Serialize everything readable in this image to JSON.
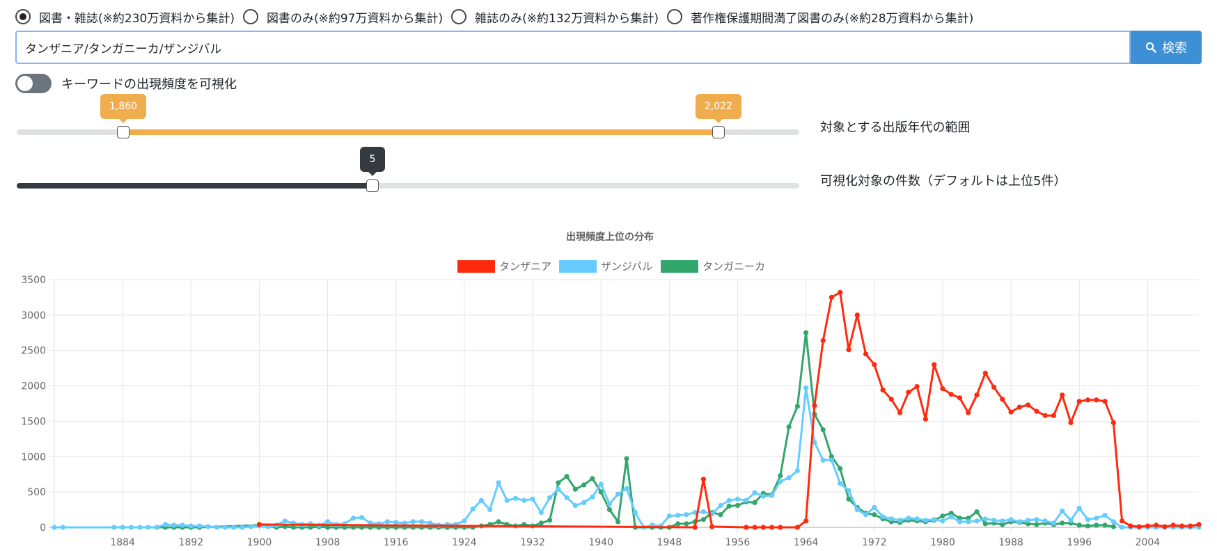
{
  "search_scope": {
    "options": [
      {
        "label": "図書・雑誌(※約230万資料から集計)",
        "selected": true
      },
      {
        "label": "図書のみ(※約97万資料から集計)",
        "selected": false
      },
      {
        "label": "雑誌のみ(※約132万資料から集計)",
        "selected": false
      },
      {
        "label": "著作権保護期間満了図書のみ(※約28万資料から集計)",
        "selected": false
      }
    ]
  },
  "search": {
    "query": "タンザニア/タンガニーカ/ザンジバル",
    "button_label": "検索",
    "button_icon": "search-icon"
  },
  "visualize_toggle": {
    "label": "キーワードの出現頻度を可視化",
    "on": false
  },
  "year_range": {
    "min_label": "1,860",
    "max_label": "2,022",
    "min": 1860,
    "max": 2022,
    "domain": [
      1831,
      2044
    ],
    "label": "対象とする出版年代の範囲"
  },
  "count_slider": {
    "value_label": "5",
    "value": 5,
    "domain": [
      0,
      11
    ],
    "label": "可視化対象の件数（デフォルトは上位5件）"
  },
  "colors": {
    "accent_orange": "#f0ad4e",
    "dark": "#343a40",
    "primary": "#3d8fd6"
  },
  "chart_data": {
    "type": "line",
    "title": "出現頻度上位の分布",
    "legend_position": "top",
    "grid": true,
    "xlim": [
      1876,
      2010
    ],
    "ylim": [
      0,
      3500
    ],
    "x_ticks": [
      1884,
      1892,
      1900,
      1908,
      1916,
      1924,
      1932,
      1940,
      1948,
      1956,
      1964,
      1972,
      1980,
      1988,
      1996,
      2004
    ],
    "y_ticks": [
      0,
      500,
      1000,
      1500,
      2000,
      2500,
      3000,
      3500
    ],
    "series": [
      {
        "name": "タンザニア",
        "color": "#ff2a0e",
        "points": [
          [
            1900,
            40
          ],
          [
            1951,
            0
          ],
          [
            1952,
            680
          ],
          [
            1953,
            10
          ],
          [
            1957,
            0
          ],
          [
            1958,
            0
          ],
          [
            1959,
            0
          ],
          [
            1960,
            0
          ],
          [
            1961,
            0
          ],
          [
            1963,
            0
          ],
          [
            1964,
            90
          ],
          [
            1965,
            1720
          ],
          [
            1966,
            2640
          ],
          [
            1967,
            3250
          ],
          [
            1968,
            3320
          ],
          [
            1969,
            2510
          ],
          [
            1970,
            3000
          ],
          [
            1971,
            2450
          ],
          [
            1972,
            2300
          ],
          [
            1973,
            1940
          ],
          [
            1974,
            1810
          ],
          [
            1975,
            1620
          ],
          [
            1976,
            1910
          ],
          [
            1977,
            1990
          ],
          [
            1978,
            1530
          ],
          [
            1979,
            2300
          ],
          [
            1980,
            1960
          ],
          [
            1981,
            1880
          ],
          [
            1982,
            1830
          ],
          [
            1983,
            1620
          ],
          [
            1984,
            1870
          ],
          [
            1985,
            2180
          ],
          [
            1986,
            1980
          ],
          [
            1987,
            1810
          ],
          [
            1988,
            1630
          ],
          [
            1989,
            1700
          ],
          [
            1990,
            1730
          ],
          [
            1991,
            1640
          ],
          [
            1992,
            1580
          ],
          [
            1993,
            1580
          ],
          [
            1994,
            1870
          ],
          [
            1995,
            1480
          ],
          [
            1996,
            1780
          ],
          [
            1997,
            1800
          ],
          [
            1998,
            1800
          ],
          [
            1999,
            1780
          ],
          [
            2000,
            1480
          ],
          [
            2001,
            90
          ],
          [
            2002,
            20
          ],
          [
            2003,
            10
          ],
          [
            2004,
            20
          ],
          [
            2005,
            30
          ],
          [
            2006,
            10
          ],
          [
            2007,
            30
          ],
          [
            2008,
            20
          ],
          [
            2009,
            20
          ],
          [
            2010,
            40
          ]
        ]
      },
      {
        "name": "ザンジバル",
        "color": "#66ccff",
        "points": [
          [
            1876,
            0
          ],
          [
            1877,
            0
          ],
          [
            1883,
            0
          ],
          [
            1884,
            0
          ],
          [
            1885,
            0
          ],
          [
            1886,
            0
          ],
          [
            1887,
            0
          ],
          [
            1888,
            0
          ],
          [
            1889,
            40
          ],
          [
            1890,
            30
          ],
          [
            1891,
            30
          ],
          [
            1892,
            20
          ],
          [
            1893,
            20
          ],
          [
            1894,
            10
          ],
          [
            1895,
            0
          ],
          [
            1896,
            0
          ],
          [
            1897,
            0
          ],
          [
            1898,
            0
          ],
          [
            1899,
            10
          ],
          [
            1900,
            20
          ],
          [
            1901,
            10
          ],
          [
            1902,
            30
          ],
          [
            1903,
            90
          ],
          [
            1904,
            60
          ],
          [
            1905,
            40
          ],
          [
            1906,
            50
          ],
          [
            1907,
            30
          ],
          [
            1908,
            80
          ],
          [
            1909,
            40
          ],
          [
            1910,
            50
          ],
          [
            1911,
            130
          ],
          [
            1912,
            140
          ],
          [
            1913,
            60
          ],
          [
            1914,
            50
          ],
          [
            1915,
            80
          ],
          [
            1916,
            70
          ],
          [
            1917,
            60
          ],
          [
            1918,
            80
          ],
          [
            1919,
            80
          ],
          [
            1920,
            60
          ],
          [
            1921,
            30
          ],
          [
            1922,
            40
          ],
          [
            1923,
            40
          ],
          [
            1924,
            90
          ],
          [
            1925,
            260
          ],
          [
            1926,
            380
          ],
          [
            1927,
            250
          ],
          [
            1928,
            630
          ],
          [
            1929,
            380
          ],
          [
            1930,
            410
          ],
          [
            1931,
            380
          ],
          [
            1932,
            400
          ],
          [
            1933,
            210
          ],
          [
            1934,
            420
          ],
          [
            1935,
            540
          ],
          [
            1936,
            420
          ],
          [
            1937,
            310
          ],
          [
            1938,
            350
          ],
          [
            1939,
            430
          ],
          [
            1940,
            610
          ],
          [
            1941,
            330
          ],
          [
            1942,
            470
          ],
          [
            1943,
            550
          ],
          [
            1944,
            210
          ],
          [
            1945,
            0
          ],
          [
            1946,
            30
          ],
          [
            1947,
            20
          ],
          [
            1948,
            160
          ],
          [
            1949,
            170
          ],
          [
            1950,
            180
          ],
          [
            1951,
            210
          ],
          [
            1952,
            220
          ],
          [
            1953,
            190
          ],
          [
            1954,
            310
          ],
          [
            1955,
            380
          ],
          [
            1956,
            400
          ],
          [
            1957,
            380
          ],
          [
            1958,
            490
          ],
          [
            1959,
            440
          ],
          [
            1960,
            450
          ],
          [
            1961,
            650
          ],
          [
            1962,
            700
          ],
          [
            1963,
            800
          ],
          [
            1964,
            1970
          ],
          [
            1965,
            1200
          ],
          [
            1966,
            950
          ],
          [
            1967,
            950
          ],
          [
            1968,
            620
          ],
          [
            1969,
            520
          ],
          [
            1970,
            250
          ],
          [
            1971,
            180
          ],
          [
            1972,
            280
          ],
          [
            1973,
            150
          ],
          [
            1974,
            120
          ],
          [
            1975,
            100
          ],
          [
            1976,
            130
          ],
          [
            1977,
            120
          ],
          [
            1978,
            100
          ],
          [
            1979,
            110
          ],
          [
            1980,
            90
          ],
          [
            1981,
            150
          ],
          [
            1982,
            80
          ],
          [
            1983,
            80
          ],
          [
            1984,
            90
          ],
          [
            1985,
            120
          ],
          [
            1986,
            100
          ],
          [
            1987,
            90
          ],
          [
            1988,
            110
          ],
          [
            1989,
            80
          ],
          [
            1990,
            100
          ],
          [
            1991,
            110
          ],
          [
            1992,
            90
          ],
          [
            1993,
            60
          ],
          [
            1994,
            230
          ],
          [
            1995,
            100
          ],
          [
            1996,
            270
          ],
          [
            1997,
            110
          ],
          [
            1998,
            130
          ],
          [
            1999,
            170
          ],
          [
            2000,
            80
          ],
          [
            2001,
            0
          ],
          [
            2002,
            0
          ],
          [
            2003,
            0
          ],
          [
            2004,
            0
          ],
          [
            2005,
            0
          ],
          [
            2006,
            0
          ],
          [
            2007,
            0
          ],
          [
            2008,
            0
          ],
          [
            2009,
            0
          ],
          [
            2010,
            0
          ]
        ]
      },
      {
        "name": "タンガニーカ",
        "color": "#33a66b",
        "points": [
          [
            1888,
            0
          ],
          [
            1889,
            0
          ],
          [
            1890,
            0
          ],
          [
            1891,
            0
          ],
          [
            1892,
            0
          ],
          [
            1893,
            0
          ],
          [
            1900,
            30
          ],
          [
            1901,
            20
          ],
          [
            1902,
            0
          ],
          [
            1903,
            10
          ],
          [
            1904,
            0
          ],
          [
            1905,
            0
          ],
          [
            1906,
            0
          ],
          [
            1907,
            10
          ],
          [
            1908,
            0
          ],
          [
            1909,
            0
          ],
          [
            1910,
            0
          ],
          [
            1911,
            0
          ],
          [
            1912,
            0
          ],
          [
            1913,
            0
          ],
          [
            1914,
            0
          ],
          [
            1915,
            0
          ],
          [
            1916,
            0
          ],
          [
            1917,
            0
          ],
          [
            1918,
            0
          ],
          [
            1919,
            0
          ],
          [
            1920,
            0
          ],
          [
            1921,
            0
          ],
          [
            1922,
            0
          ],
          [
            1923,
            0
          ],
          [
            1924,
            0
          ],
          [
            1925,
            0
          ],
          [
            1926,
            20
          ],
          [
            1927,
            40
          ],
          [
            1928,
            80
          ],
          [
            1929,
            40
          ],
          [
            1930,
            20
          ],
          [
            1931,
            40
          ],
          [
            1932,
            20
          ],
          [
            1933,
            60
          ],
          [
            1934,
            100
          ],
          [
            1935,
            630
          ],
          [
            1936,
            720
          ],
          [
            1937,
            540
          ],
          [
            1938,
            600
          ],
          [
            1939,
            690
          ],
          [
            1940,
            500
          ],
          [
            1941,
            250
          ],
          [
            1942,
            80
          ],
          [
            1943,
            970
          ],
          [
            1944,
            0
          ],
          [
            1945,
            0
          ],
          [
            1946,
            0
          ],
          [
            1947,
            0
          ],
          [
            1948,
            0
          ],
          [
            1949,
            50
          ],
          [
            1950,
            50
          ],
          [
            1951,
            80
          ],
          [
            1952,
            110
          ],
          [
            1953,
            210
          ],
          [
            1954,
            180
          ],
          [
            1955,
            300
          ],
          [
            1956,
            310
          ],
          [
            1957,
            360
          ],
          [
            1958,
            350
          ],
          [
            1959,
            480
          ],
          [
            1960,
            460
          ],
          [
            1961,
            730
          ],
          [
            1962,
            1420
          ],
          [
            1963,
            1710
          ],
          [
            1964,
            2750
          ],
          [
            1965,
            1600
          ],
          [
            1966,
            1380
          ],
          [
            1967,
            1000
          ],
          [
            1968,
            830
          ],
          [
            1969,
            400
          ],
          [
            1970,
            280
          ],
          [
            1971,
            200
          ],
          [
            1972,
            180
          ],
          [
            1973,
            120
          ],
          [
            1974,
            80
          ],
          [
            1975,
            70
          ],
          [
            1976,
            100
          ],
          [
            1977,
            90
          ],
          [
            1978,
            80
          ],
          [
            1979,
            100
          ],
          [
            1980,
            160
          ],
          [
            1981,
            200
          ],
          [
            1982,
            130
          ],
          [
            1983,
            130
          ],
          [
            1984,
            220
          ],
          [
            1985,
            50
          ],
          [
            1986,
            60
          ],
          [
            1987,
            40
          ],
          [
            1988,
            80
          ],
          [
            1989,
            70
          ],
          [
            1990,
            50
          ],
          [
            1991,
            40
          ],
          [
            1992,
            60
          ],
          [
            1993,
            40
          ],
          [
            1994,
            60
          ],
          [
            1995,
            60
          ],
          [
            1996,
            30
          ],
          [
            1997,
            20
          ],
          [
            1998,
            30
          ],
          [
            1999,
            30
          ],
          [
            2000,
            10
          ]
        ]
      }
    ]
  }
}
